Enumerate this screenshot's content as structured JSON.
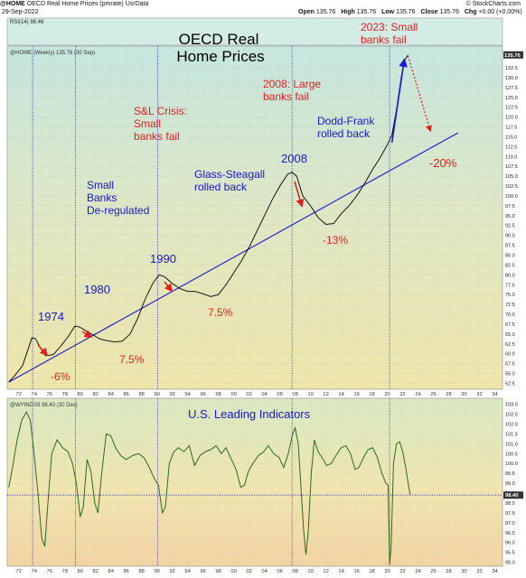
{
  "header": {
    "symbol": "@HOME",
    "desc": "OECD Real Home Prices (pmrate) UsrData",
    "brand": "© StockCharts.com",
    "date": "29-Sep-2022",
    "open_label": "Open",
    "open": "135.76",
    "high_label": "High",
    "high": "135.76",
    "low_label": "Low",
    "low": "135.76",
    "close_label": "Close",
    "close": "135.76",
    "chg_label": "Chg",
    "chg": "+0.00 (+0.00%)"
  },
  "rsi_label": "RSI(14) 98.46",
  "price_legend": "@HOME (Weekly) 135.76 (30 Sep)",
  "indicator_legend": "@WYINDS9 98.40 (30 Dec)",
  "chart_data": [
    {
      "type": "line",
      "title": "OECD Real Home Prices",
      "price_label": "135.76",
      "x_ticks": [
        "72",
        "74",
        "76",
        "78",
        "80",
        "82",
        "84",
        "86",
        "88",
        "90",
        "92",
        "94",
        "96",
        "98",
        "00",
        "02",
        "04",
        "06",
        "08",
        "10",
        "12",
        "14",
        "16",
        "18",
        "20",
        "22",
        "24",
        "26",
        "28",
        "30",
        "32",
        "34"
      ],
      "y_ticks": [
        52.5,
        55.0,
        57.5,
        60.0,
        62.5,
        65.0,
        67.5,
        70.0,
        72.5,
        75.0,
        77.5,
        80.0,
        82.5,
        85.0,
        87.5,
        90.0,
        92.5,
        95.0,
        97.5,
        100.0,
        102.5,
        105.0,
        107.5,
        110.0,
        112.5,
        115.0,
        117.5,
        120.0,
        122.5,
        125.0,
        127.5,
        130.0,
        132.5
      ],
      "ylim": [
        51,
        138
      ],
      "xlim": [
        1970.5,
        2035
      ],
      "series": [
        {
          "points": [
            [
              1970.7,
              52.8
            ],
            [
              1971.5,
              54.5
            ],
            [
              1972.5,
              57.0
            ],
            [
              1973.2,
              61.0
            ],
            [
              1973.7,
              64.0
            ],
            [
              1974.2,
              63.8
            ],
            [
              1974.8,
              61.5
            ],
            [
              1975.5,
              59.5
            ],
            [
              1976.5,
              59.8
            ],
            [
              1977.5,
              62.0
            ],
            [
              1978.5,
              64.5
            ],
            [
              1979.3,
              67.0
            ],
            [
              1979.9,
              66.8
            ],
            [
              1980.6,
              66.0
            ],
            [
              1981.5,
              65.0
            ],
            [
              1982.5,
              63.8
            ],
            [
              1983.5,
              63.3
            ],
            [
              1984.5,
              63.0
            ],
            [
              1985.5,
              63.2
            ],
            [
              1986.5,
              65.0
            ],
            [
              1987.5,
              69.0
            ],
            [
              1988.5,
              74.0
            ],
            [
              1989.5,
              78.0
            ],
            [
              1990.3,
              80.0
            ],
            [
              1991.0,
              79.5
            ],
            [
              1992.0,
              77.8
            ],
            [
              1993.0,
              76.5
            ],
            [
              1994.0,
              75.8
            ],
            [
              1995.0,
              75.8
            ],
            [
              1996.0,
              75.2
            ],
            [
              1997.0,
              74.5
            ],
            [
              1998.0,
              75.0
            ],
            [
              1999.0,
              77.5
            ],
            [
              2000.0,
              80.5
            ],
            [
              2001.0,
              83.5
            ],
            [
              2002.0,
              87.0
            ],
            [
              2003.0,
              91.0
            ],
            [
              2004.0,
              95.0
            ],
            [
              2005.0,
              99.0
            ],
            [
              2006.0,
              102.5
            ],
            [
              2007.0,
              105.5
            ],
            [
              2007.6,
              106.0
            ],
            [
              2008.2,
              105.0
            ],
            [
              2009.0,
              100.0
            ],
            [
              2010.0,
              97.5
            ],
            [
              2011.0,
              94.5
            ],
            [
              2012.0,
              92.8
            ],
            [
              2013.0,
              93.0
            ],
            [
              2014.0,
              95.5
            ],
            [
              2015.0,
              97.5
            ],
            [
              2016.0,
              100.0
            ],
            [
              2017.0,
              103.0
            ],
            [
              2018.0,
              106.5
            ],
            [
              2019.0,
              109.5
            ],
            [
              2020.0,
              113.0
            ],
            [
              2020.6,
              115.5
            ],
            [
              2021.2,
              122.0
            ],
            [
              2021.8,
              130.0
            ],
            [
              2022.3,
              134.5
            ],
            [
              2022.7,
              135.76
            ]
          ]
        }
      ],
      "trendline": [
        [
          1970.7,
          52.8
        ],
        [
          2029.2,
          116.0
        ]
      ],
      "projection": [
        [
          2022.7,
          135.5
        ],
        [
          2025.6,
          116.5
        ]
      ],
      "annotations": {
        "title_line1": "OECD Real",
        "title_line2": "Home Prices",
        "y1974": "1974",
        "y1980": "1980",
        "y1990": "1990",
        "y2008": "2008",
        "d6": "-6%",
        "d75a": "7.5%",
        "d75b": "7.5%",
        "d13": "-13%",
        "d20": "-20%",
        "small_banks": [
          "Small",
          "Banks",
          "De-regulated"
        ],
        "sl_crisis": [
          "S&L Crisis:",
          "Small",
          "banks fail"
        ],
        "glass": [
          "Glass-Steagall",
          "rolled back"
        ],
        "large_banks": [
          "2008: Large",
          "banks fail"
        ],
        "dodd": [
          "Dodd-Frank",
          "rolled back"
        ],
        "small2023": [
          "2023: Small",
          "banks fail"
        ]
      }
    },
    {
      "type": "line",
      "title": "U.S. Leading Indicators",
      "price_label": "98.40",
      "y_ticks": [
        95.0,
        95.5,
        96.0,
        96.5,
        97.0,
        97.5,
        98.0,
        98.5,
        99.0,
        99.5,
        100.0,
        100.5,
        101.0,
        101.5,
        102.0,
        102.5,
        103.0
      ],
      "ylim": [
        94.8,
        103.3
      ],
      "reference_level": 98.4,
      "series": [
        {
          "points": [
            [
              1970.7,
              98.8
            ],
            [
              1971.2,
              99.8
            ],
            [
              1971.8,
              101.2
            ],
            [
              1972.4,
              102.2
            ],
            [
              1973.0,
              102.6
            ],
            [
              1973.5,
              102.2
            ],
            [
              1974.0,
              100.5
            ],
            [
              1974.5,
              98.5
            ],
            [
              1975.0,
              96.2
            ],
            [
              1975.4,
              95.8
            ],
            [
              1975.8,
              98.0
            ],
            [
              1976.3,
              100.5
            ],
            [
              1977.0,
              101.2
            ],
            [
              1977.7,
              100.8
            ],
            [
              1978.4,
              100.6
            ],
            [
              1979.0,
              100.0
            ],
            [
              1979.5,
              99.0
            ],
            [
              1980.0,
              97.3
            ],
            [
              1980.4,
              97.8
            ],
            [
              1980.9,
              100.2
            ],
            [
              1981.4,
              99.6
            ],
            [
              1981.9,
              98.0
            ],
            [
              1982.3,
              97.5
            ],
            [
              1982.8,
              99.5
            ],
            [
              1983.4,
              101.5
            ],
            [
              1984.0,
              101.4
            ],
            [
              1984.6,
              100.8
            ],
            [
              1985.3,
              100.4
            ],
            [
              1986.0,
              100.2
            ],
            [
              1986.8,
              100.4
            ],
            [
              1987.6,
              100.5
            ],
            [
              1988.3,
              100.3
            ],
            [
              1989.0,
              99.8
            ],
            [
              1989.7,
              99.2
            ],
            [
              1990.2,
              98.9
            ],
            [
              1990.7,
              97.5
            ],
            [
              1991.1,
              97.8
            ],
            [
              1991.6,
              100.0
            ],
            [
              1992.2,
              100.6
            ],
            [
              1992.8,
              100.8
            ],
            [
              1993.5,
              100.6
            ],
            [
              1994.2,
              100.9
            ],
            [
              1994.9,
              99.9
            ],
            [
              1995.6,
              100.4
            ],
            [
              1996.3,
              100.6
            ],
            [
              1997.0,
              100.7
            ],
            [
              1997.7,
              100.9
            ],
            [
              1998.4,
              100.5
            ],
            [
              1999.0,
              100.8
            ],
            [
              1999.7,
              100.2
            ],
            [
              2000.3,
              99.7
            ],
            [
              2000.9,
              98.8
            ],
            [
              2001.4,
              98.9
            ],
            [
              2001.9,
              99.6
            ],
            [
              2002.5,
              100.0
            ],
            [
              2003.2,
              100.4
            ],
            [
              2003.9,
              100.6
            ],
            [
              2004.5,
              100.9
            ],
            [
              2005.2,
              100.5
            ],
            [
              2005.9,
              100.3
            ],
            [
              2006.5,
              99.8
            ],
            [
              2007.1,
              100.5
            ],
            [
              2007.6,
              101.4
            ],
            [
              2008.0,
              101.8
            ],
            [
              2008.4,
              101.0
            ],
            [
              2008.8,
              98.5
            ],
            [
              2009.1,
              96.6
            ],
            [
              2009.4,
              95.4
            ],
            [
              2009.7,
              96.5
            ],
            [
              2010.1,
              99.5
            ],
            [
              2010.5,
              101.2
            ],
            [
              2011.0,
              100.6
            ],
            [
              2011.5,
              100.3
            ],
            [
              2012.1,
              99.9
            ],
            [
              2012.7,
              100.0
            ],
            [
              2013.3,
              100.4
            ],
            [
              2014.0,
              100.8
            ],
            [
              2014.6,
              100.9
            ],
            [
              2015.2,
              100.5
            ],
            [
              2015.8,
              99.7
            ],
            [
              2016.3,
              99.8
            ],
            [
              2016.9,
              100.3
            ],
            [
              2017.5,
              100.7
            ],
            [
              2018.1,
              100.8
            ],
            [
              2018.7,
              100.3
            ],
            [
              2019.3,
              99.5
            ],
            [
              2019.8,
              99.0
            ],
            [
              2020.1,
              98.9
            ],
            [
              2020.3,
              94.9
            ],
            [
              2020.5,
              95.8
            ],
            [
              2020.8,
              100.0
            ],
            [
              2021.2,
              101.0
            ],
            [
              2021.6,
              101.1
            ],
            [
              2022.0,
              100.6
            ],
            [
              2022.4,
              99.8
            ],
            [
              2022.8,
              98.8
            ],
            [
              2023.0,
              98.4
            ]
          ]
        }
      ]
    }
  ]
}
